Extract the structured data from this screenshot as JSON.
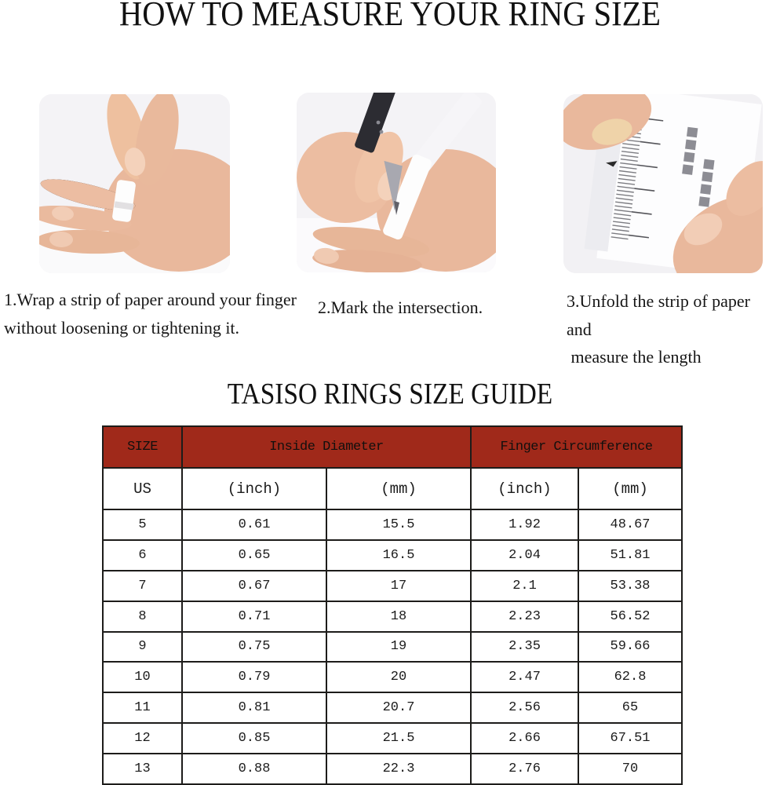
{
  "page": {
    "title": "HOW TO MEASURE YOUR RING SIZE",
    "guide_title": "TASISO RINGS SIZE GUIDE"
  },
  "steps": [
    {
      "image": "hand-with-paper-strip-photo",
      "caption": "1.Wrap a strip of paper around your finger\nwithout loosening or tightening it."
    },
    {
      "image": "pen-marking-strip-photo",
      "caption": "2.Mark the intersection."
    },
    {
      "image": "ruler-measuring-strip-photo",
      "caption": "3.Unfold the strip of paper and\n measure the length"
    }
  ],
  "size_table": {
    "header_groups": [
      {
        "label": "SIZE",
        "colspan": 1
      },
      {
        "label": "Inside Diameter",
        "colspan": 2
      },
      {
        "label": "Finger Circumference",
        "colspan": 2
      }
    ],
    "sub_headers": [
      "US",
      "(inch)",
      "(mm)",
      "(inch)",
      "(mm)"
    ],
    "rows": [
      [
        "5",
        "0.61",
        "15.5",
        "1.92",
        "48.67"
      ],
      [
        "6",
        "0.65",
        "16.5",
        "2.04",
        "51.81"
      ],
      [
        "7",
        "0.67",
        "17",
        "2.1",
        "53.38"
      ],
      [
        "8",
        "0.71",
        "18",
        "2.23",
        "56.52"
      ],
      [
        "9",
        "0.75",
        "19",
        "2.35",
        "59.66"
      ],
      [
        "10",
        "0.79",
        "20",
        "2.47",
        "62.8"
      ],
      [
        "11",
        "0.81",
        "20.7",
        "2.56",
        "65"
      ],
      [
        "12",
        "0.85",
        "21.5",
        "2.66",
        "67.51"
      ],
      [
        "13",
        "0.88",
        "22.3",
        "2.76",
        "70"
      ]
    ],
    "colors": {
      "header_bg": "#A0291A",
      "border": "#1d1c1a",
      "text": "#1b1b1b"
    }
  }
}
